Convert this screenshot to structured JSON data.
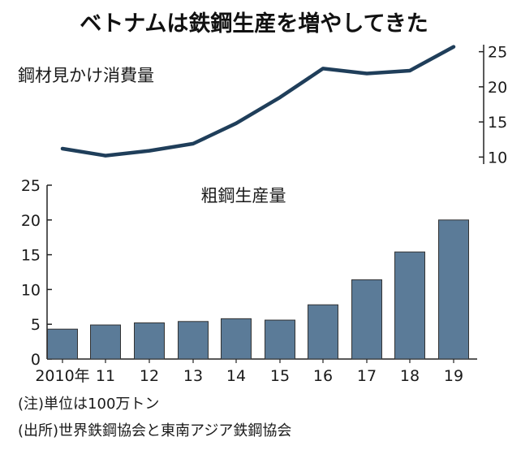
{
  "title": "ベトナムは鉄鋼生産を増やしてきた",
  "note_unit": "(注)単位は100万トン",
  "note_source": "(出所)世界鉄鋼協会と東南アジア鉄鋼協会",
  "chart_data": [
    {
      "type": "line",
      "title": "鋼材見かけ消費量",
      "x": [
        "2010",
        "2011",
        "2012",
        "2013",
        "2014",
        "2015",
        "2016",
        "2017",
        "2018",
        "2019"
      ],
      "values": [
        11.2,
        10.2,
        10.9,
        11.9,
        14.8,
        18.5,
        22.6,
        21.9,
        22.3,
        25.7
      ],
      "yticks": [
        10,
        15,
        20,
        25
      ],
      "ylim": [
        9,
        26
      ],
      "axis_side": "right",
      "color": "#1f3e5a"
    },
    {
      "type": "bar",
      "title": "粗鋼生産量",
      "categories": [
        "2010年",
        "11",
        "12",
        "13",
        "14",
        "15",
        "16",
        "17",
        "18",
        "19"
      ],
      "values": [
        4.3,
        4.9,
        5.2,
        5.4,
        5.8,
        5.6,
        7.8,
        11.4,
        15.4,
        20.0
      ],
      "yticks": [
        0,
        5,
        10,
        15,
        20,
        25
      ],
      "ylim": [
        0,
        25
      ],
      "axis_side": "left",
      "color": "#5b7b98"
    }
  ]
}
